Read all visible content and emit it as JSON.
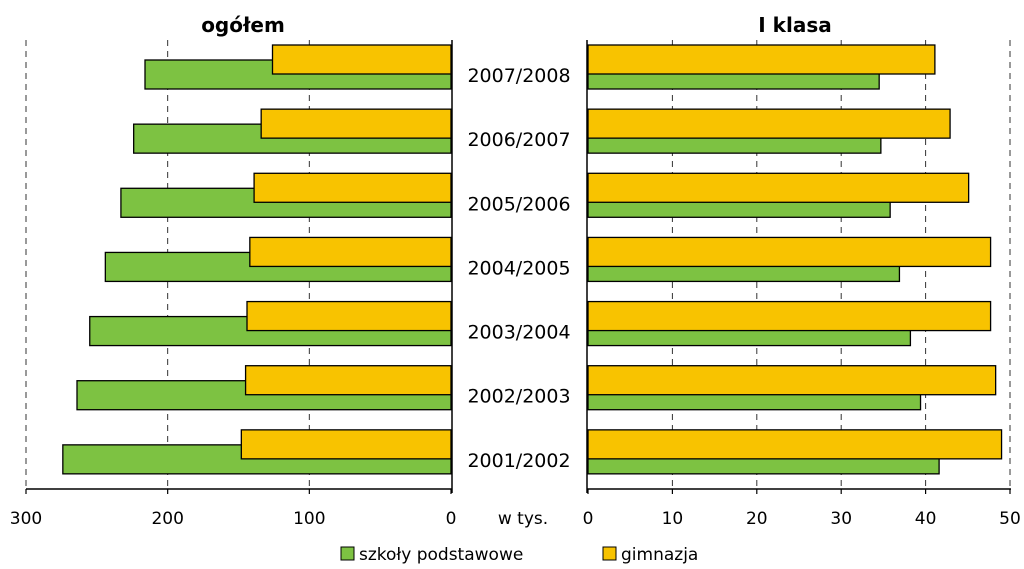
{
  "unit_label": "w tys.",
  "legend": [
    {
      "label": "szkoły podstawowe",
      "color": "#7DC242"
    },
    {
      "label": "gimnazja",
      "color": "#F8C300"
    }
  ],
  "chart_data": [
    {
      "type": "bar",
      "orientation": "horizontal",
      "direction": "right-to-left",
      "title": "ogółem",
      "categories": [
        "2001/2002",
        "2002/2003",
        "2003/2004",
        "2004/2005",
        "2005/2006",
        "2006/2007",
        "2007/2008"
      ],
      "series": [
        {
          "name": "szkoły podstawowe",
          "color": "#7DC242",
          "values": [
            274,
            264,
            255,
            244,
            233,
            224,
            216
          ]
        },
        {
          "name": "gimnazja",
          "color": "#F8C300",
          "values": [
            148,
            145,
            144,
            142,
            139,
            134,
            126
          ]
        }
      ],
      "xlim": [
        0,
        300
      ],
      "xticks": [
        300,
        200,
        100,
        0
      ],
      "grid": true
    },
    {
      "type": "bar",
      "orientation": "horizontal",
      "direction": "left-to-right",
      "title": "I klasa",
      "categories": [
        "2001/2002",
        "2002/2003",
        "2003/2004",
        "2004/2005",
        "2005/2006",
        "2006/2007",
        "2007/2008"
      ],
      "series": [
        {
          "name": "szkoły podstawowe",
          "color": "#7DC242",
          "values": [
            41.6,
            39.4,
            38.2,
            36.9,
            35.8,
            34.7,
            34.5
          ]
        },
        {
          "name": "gimnazja",
          "color": "#F8C300",
          "values": [
            49.0,
            48.3,
            47.7,
            47.7,
            45.1,
            42.9,
            41.1
          ]
        }
      ],
      "xlim": [
        0,
        50
      ],
      "xticks": [
        0,
        10,
        20,
        30,
        40,
        50
      ],
      "grid": true
    }
  ]
}
